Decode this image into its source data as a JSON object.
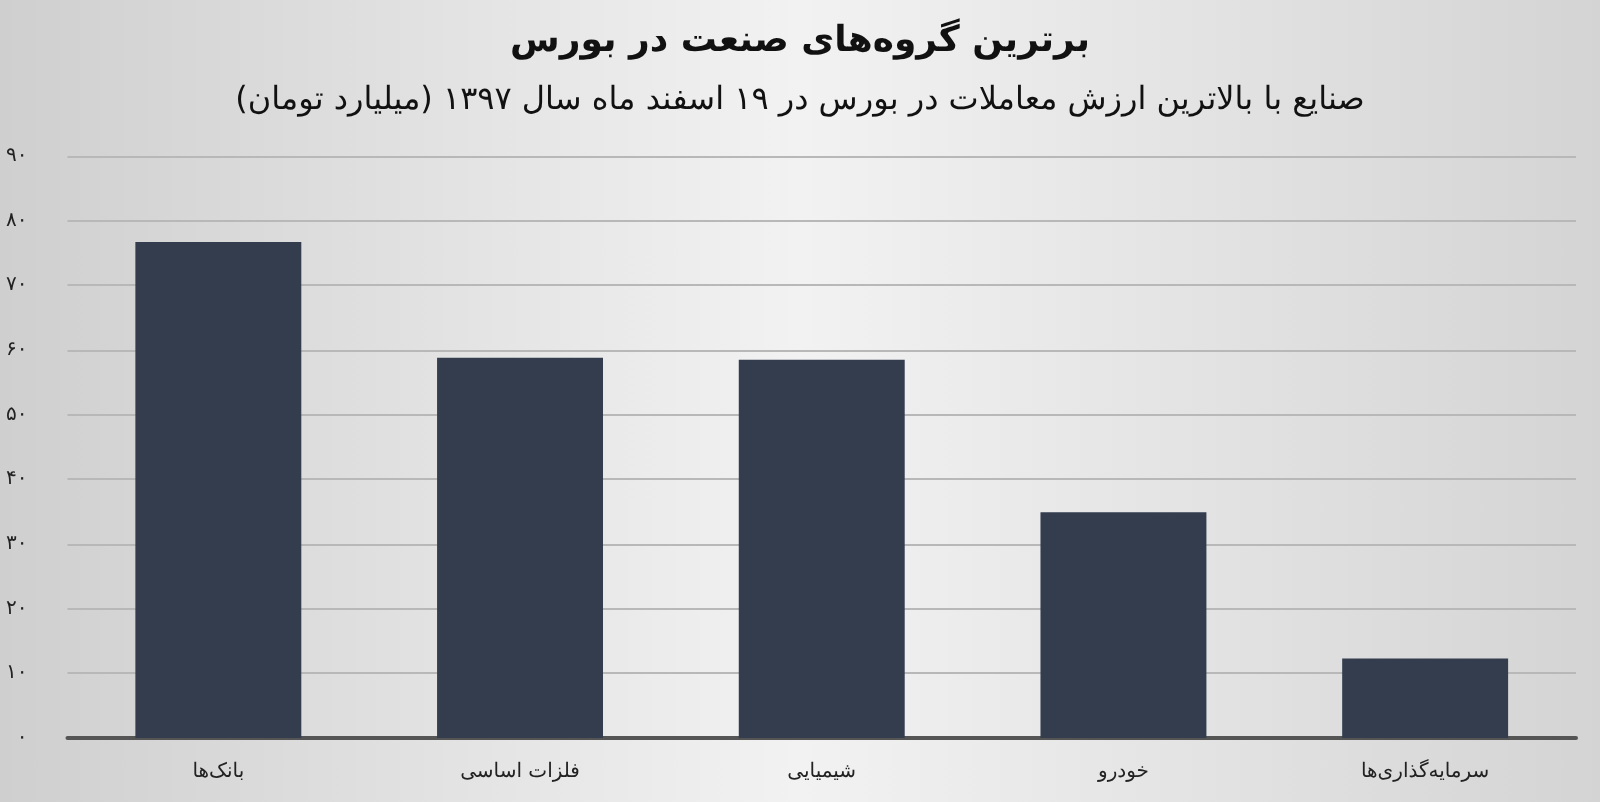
{
  "chart_data": {
    "type": "bar",
    "title": "برترین گروه‌های صنعت در بورس",
    "subtitle": "صنایع با بالاترین ارزش معاملات در بورس در ۱۹ اسفند ماه سال ۱۳۹۷ (میلیارد تومان)",
    "categories": [
      "بانک‌ها",
      "فلزات اساسی",
      "شیمیایی",
      "خودرو",
      "سرمایه‌گذاری‌ها"
    ],
    "values": [
      76.7,
      58.8,
      58.5,
      34.9,
      12.3
    ],
    "color": "#333d4e",
    "ylim": [
      0,
      90
    ],
    "yticks": [
      {
        "value": 0,
        "label": "۰"
      },
      {
        "value": 10,
        "label": "۱۰"
      },
      {
        "value": 20,
        "label": "۲۰"
      },
      {
        "value": 30,
        "label": "۳۰"
      },
      {
        "value": 40,
        "label": "۴۰"
      },
      {
        "value": 50,
        "label": "۵۰"
      },
      {
        "value": 60,
        "label": "۶۰"
      },
      {
        "value": 70,
        "label": "۷۰"
      },
      {
        "value": 80,
        "label": "۸۰"
      },
      {
        "value": 90,
        "label": "۹۰"
      }
    ],
    "grid": "y"
  }
}
